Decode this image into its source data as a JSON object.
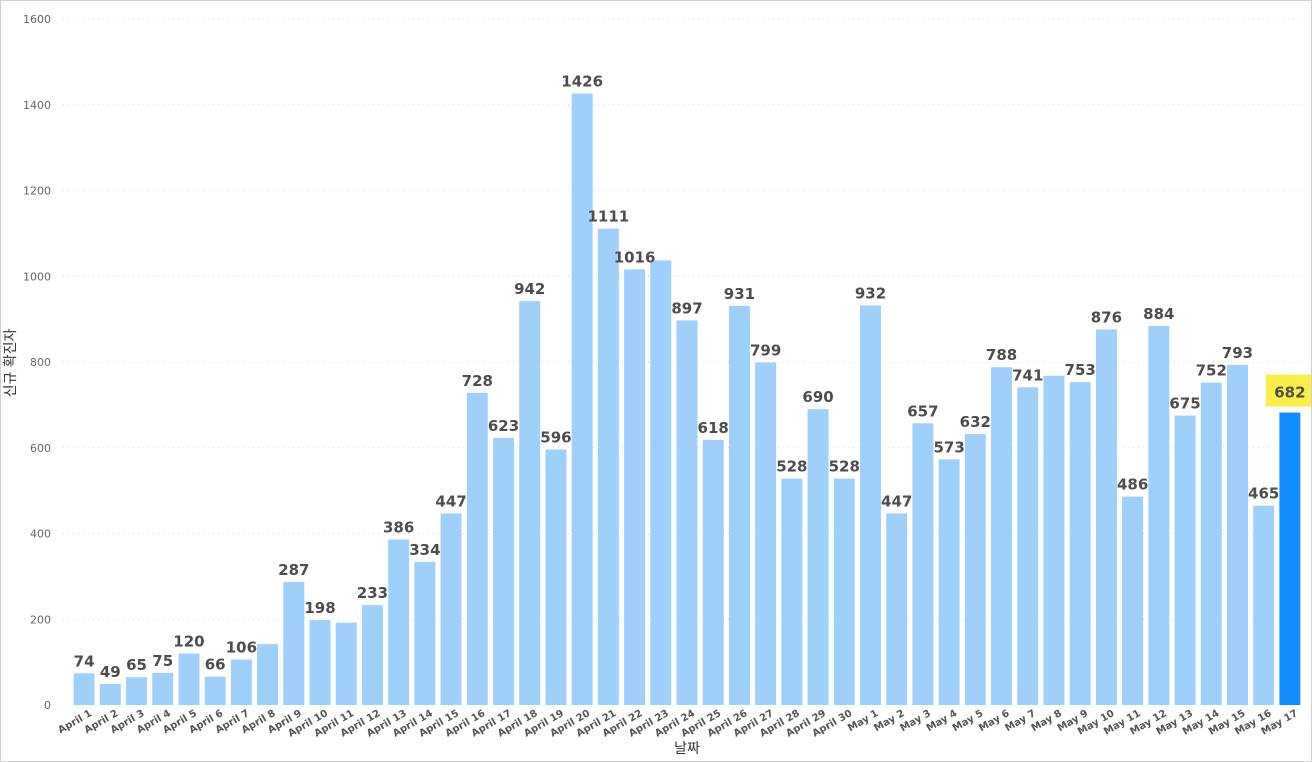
{
  "chart_data": {
    "type": "bar",
    "xlabel": "날짜",
    "ylabel": "신규 확진자",
    "ylim": [
      0,
      1600
    ],
    "yticks": [
      0,
      200,
      400,
      600,
      800,
      1000,
      1200,
      1400,
      1600
    ],
    "grid": true,
    "colors": {
      "bar": "#9fcffb",
      "highlight_bar": "#118dff",
      "highlight_label_bg": "#fcee48",
      "label": "#4d4d4d"
    },
    "highlight_index": 46,
    "categories": [
      "April 1",
      "April 2",
      "April 3",
      "April 4",
      "April 5",
      "April 6",
      "April 7",
      "April 8",
      "April 9",
      "April 10",
      "April 11",
      "April 12",
      "April 13",
      "April 14",
      "April 15",
      "April 16",
      "April 17",
      "April 18",
      "April 19",
      "April 20",
      "April 21",
      "April 22",
      "April 23",
      "April 24",
      "April 25",
      "April 26",
      "April 27",
      "April 28",
      "April 29",
      "April 30",
      "May 1",
      "May 2",
      "May 3",
      "May 4",
      "May 5",
      "May 6",
      "May 7",
      "May 8",
      "May 9",
      "May 10",
      "May 11",
      "May 12",
      "May 13",
      "May 14",
      "May 15",
      "May 16",
      "May 17"
    ],
    "values": [
      74,
      49,
      65,
      75,
      120,
      66,
      106,
      142,
      287,
      198,
      192,
      233,
      386,
      334,
      447,
      728,
      623,
      942,
      596,
      1426,
      1111,
      1016,
      1037,
      897,
      618,
      931,
      799,
      528,
      690,
      528,
      932,
      447,
      657,
      573,
      632,
      788,
      741,
      768,
      753,
      876,
      486,
      884,
      675,
      752,
      793,
      465,
      682
    ],
    "data_labels": [
      "74",
      "49",
      "65",
      "75",
      "120",
      "66",
      "106",
      "",
      "287",
      "198",
      "",
      "233",
      "386",
      "334",
      "447",
      "728",
      "623",
      "942",
      "596",
      "1426",
      "1111",
      "1016",
      "",
      "897",
      "618",
      "931",
      "799",
      "528",
      "690",
      "528",
      "932",
      "447",
      "657",
      "573",
      "632",
      "788",
      "741",
      "",
      "753",
      "876",
      "486",
      "884",
      "675",
      "752",
      "793",
      "465",
      "682"
    ]
  }
}
